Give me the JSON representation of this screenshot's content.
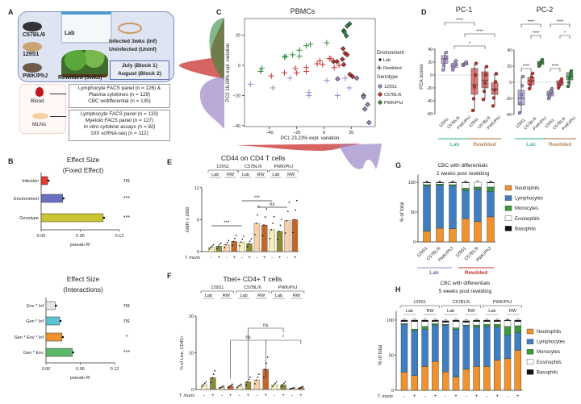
{
  "panel_letters": [
    "A",
    "B",
    "C",
    "D",
    "E",
    "F",
    "G",
    "H"
  ],
  "panelA": {
    "strains": [
      "C57BL/6",
      "129S1",
      "PWK/PhJ"
    ],
    "lab": "Lab",
    "rewilded": "Rewilded (5wks)",
    "infected": "Infected 3wks (Inf)",
    "uninfected": "Uninfected (Uninf)",
    "block1": "July (Block 1)",
    "block2": "August (Block 2)",
    "blood": "Blood",
    "mlns": "MLNs",
    "blood_assays": [
      "Lymphocyte FACS panel (n = 126) &",
      "Plasma cytokines (n = 129)",
      "CBC w/differential (n = 135)"
    ],
    "mln_assays": [
      "Lymphocyte FACS panel (n = 133)",
      "Myeloid FACS panel (n = 127)",
      "In vitro cytokine assays (n = 92)",
      "10X scRNA-seq (n = 112)"
    ]
  },
  "colors": {
    "129S1": "#9b86c6",
    "C57BL/6": "#c8302f",
    "PWK/PhJ": "#2e8b3e",
    "lab_green": "#4fc08d",
    "rewilded_tan": "#b88a5e",
    "neutro": "#f0922e",
    "lympho": "#3f7fc1",
    "mono": "#3a9a3a",
    "eos": "#ffffff",
    "baso": "#111111",
    "lab_nouninf": "#f4efb8",
    "lab_inf": "#8c8a35",
    "rw_uninf": "#f7cfa8",
    "rw_inf": "#c0682c"
  },
  "chart_data": [
    {
      "id": "B1",
      "type": "bar",
      "orientation": "horizontal",
      "title": "Effect Size",
      "subtitle": "(Fixed Effect)",
      "xlabel": "pseudo R²",
      "xlim": [
        0,
        0.12
      ],
      "xticks": [
        "0.00",
        "0.06",
        "0.12"
      ],
      "categories": [
        "Infection",
        "Environment",
        "Genotype"
      ],
      "values": [
        0.01,
        0.033,
        0.095
      ],
      "significance": [
        "ns",
        "***",
        "***"
      ],
      "bar_colors": [
        "#e03b2e",
        "#6a6fc0",
        "#c9c431"
      ]
    },
    {
      "id": "B2",
      "type": "bar",
      "orientation": "horizontal",
      "title": "Effect Size",
      "subtitle": "(Interactions)",
      "xlabel": "pseudo R²",
      "xlim": [
        0,
        0.12
      ],
      "xticks": [
        "0.00",
        "0.06",
        "0.12"
      ],
      "categories": [
        "Env * Inf",
        "Gen *  Inf",
        "Gen * Env * Inf",
        "Gen * Env"
      ],
      "values": [
        0.016,
        0.024,
        0.028,
        0.046
      ],
      "significance": [
        "ns",
        "ns",
        "*",
        "***"
      ],
      "bar_colors": [
        "#e8e8e2",
        "#5bc3d3",
        "#f0922e",
        "#5cb86a"
      ]
    },
    {
      "id": "C",
      "type": "scatter",
      "title": "PBMCs",
      "xlabel": "PC1 23.23% expl. variation",
      "ylabel": "PC2 16.08% expl. variation",
      "xlim": [
        -58,
        36
      ],
      "ylim": [
        -42,
        31
      ],
      "xticks": [
        -40,
        -20,
        0,
        20
      ],
      "yticks": [
        -40,
        -20,
        0,
        20
      ],
      "legend": {
        "env_title": "Environment",
        "env": [
          "Lab",
          "Rewilded"
        ],
        "geno_title": "Genotype",
        "geno": [
          "129S1",
          "C57BL/6",
          "PWK/PhJ"
        ],
        "placement": "right"
      },
      "points": [
        [
          18.8,
          27.5,
          "Lab",
          "PWK/PhJ"
        ],
        [
          17,
          26,
          "Lab",
          "PWK/PhJ"
        ],
        [
          14.5,
          23,
          "Lab",
          "PWK/PhJ"
        ],
        [
          16.4,
          19.6,
          "Lab",
          "PWK/PhJ"
        ],
        [
          15,
          22,
          "Lab",
          "PWK/PhJ"
        ],
        [
          -46.5,
          -4,
          "RW",
          "PWK/PhJ"
        ],
        [
          -45.5,
          -2,
          "RW",
          "PWK/PhJ"
        ],
        [
          -29,
          5.5,
          "RW",
          "PWK/PhJ"
        ],
        [
          -28,
          6,
          "RW",
          "PWK/PhJ"
        ],
        [
          -23,
          7,
          "RW",
          "PWK/PhJ"
        ],
        [
          -18,
          10,
          "RW",
          "PWK/PhJ"
        ],
        [
          -18,
          6,
          "RW",
          "PWK/PhJ"
        ],
        [
          -13,
          13,
          "RW",
          "PWK/PhJ"
        ],
        [
          -10,
          14,
          "RW",
          "PWK/PhJ"
        ],
        [
          2,
          15,
          "RW",
          "PWK/PhJ"
        ],
        [
          14,
          11,
          "Lab",
          "C57BL/6"
        ],
        [
          15.5,
          8,
          "Lab",
          "C57BL/6"
        ],
        [
          17,
          7,
          "Lab",
          "C57BL/6"
        ],
        [
          9.5,
          2.5,
          "Lab",
          "C57BL/6"
        ],
        [
          7,
          2.5,
          "Lab",
          "C57BL/6"
        ],
        [
          13.5,
          4,
          "Lab",
          "C57BL/6"
        ],
        [
          14.5,
          0.5,
          "Lab",
          "C57BL/6"
        ],
        [
          19,
          -6,
          "Lab",
          "C57BL/6"
        ],
        [
          21,
          -7.5,
          "Lab",
          "C57BL/6"
        ],
        [
          -38.6,
          -7,
          "RW",
          "C57BL/6"
        ],
        [
          -29,
          -5,
          "RW",
          "C57BL/6"
        ],
        [
          -21,
          -2,
          "RW",
          "C57BL/6"
        ],
        [
          -20,
          -5,
          "RW",
          "C57BL/6"
        ],
        [
          -13,
          -1.5,
          "RW",
          "C57BL/6"
        ],
        [
          -13,
          -4,
          "RW",
          "C57BL/6"
        ],
        [
          -5,
          1,
          "RW",
          "C57BL/6"
        ],
        [
          -3,
          3,
          "RW",
          "C57BL/6"
        ],
        [
          -1,
          0.5,
          "RW",
          "C57BL/6"
        ],
        [
          5,
          4.5,
          "RW",
          "C57BL/6"
        ],
        [
          7.5,
          -1.5,
          "RW",
          "C57BL/6"
        ],
        [
          11,
          0,
          "RW",
          "C57BL/6"
        ],
        [
          4,
          4.5,
          "RW",
          "C57BL/6"
        ],
        [
          10,
          -9,
          "Lab",
          "129S1"
        ],
        [
          24,
          -8.5,
          "Lab",
          "129S1"
        ],
        [
          29,
          -20,
          "Lab",
          "129S1"
        ],
        [
          29,
          -21,
          "Lab",
          "129S1"
        ],
        [
          30,
          -29,
          "Lab",
          "129S1"
        ],
        [
          32,
          -26,
          "Lab",
          "129S1"
        ],
        [
          33,
          -38,
          "Lab",
          "129S1"
        ],
        [
          -54,
          -12.5,
          "RW",
          "129S1"
        ],
        [
          -37.5,
          -15,
          "RW",
          "129S1"
        ],
        [
          -25,
          -8.5,
          "RW",
          "129S1"
        ],
        [
          -11,
          -18,
          "RW",
          "129S1"
        ],
        [
          -11,
          -20,
          "RW",
          "129S1"
        ],
        [
          2,
          -10,
          "RW",
          "129S1"
        ],
        [
          10,
          -20,
          "RW",
          "129S1"
        ],
        [
          15.5,
          -8.5,
          "RW",
          "129S1"
        ],
        [
          18.6,
          -15,
          "RW",
          "129S1"
        ]
      ]
    },
    {
      "id": "D1",
      "type": "box",
      "title": "PC-1",
      "ylabel": "PCA scores",
      "ylim": [
        -60,
        40
      ],
      "yticks": [
        -60,
        -40,
        -20,
        0,
        20,
        40
      ],
      "categories": [
        "129S1",
        "C57BL/6",
        "PWK/PhJ",
        "129S1",
        "C57BL/6",
        "PWK/PhJ"
      ],
      "groups": [
        "Lab",
        "Rewilded"
      ],
      "boxes": [
        [
          8,
          18,
          25,
          30,
          35
        ],
        [
          8,
          12,
          15,
          18,
          22
        ],
        [
          15,
          16,
          17,
          18,
          20
        ],
        [
          -55,
          -30,
          -15,
          10,
          18
        ],
        [
          -38,
          -20,
          -8,
          5,
          13
        ],
        [
          -48,
          -30,
          -22,
          -12,
          2
        ]
      ],
      "brackets": [
        [
          0,
          3,
          "****"
        ],
        [
          2,
          5,
          "****"
        ],
        [
          1,
          4,
          "*"
        ]
      ]
    },
    {
      "id": "D2",
      "type": "box",
      "title": "PC-2",
      "ylim": [
        -40,
        40
      ],
      "yticks": [
        -40,
        -20,
        0,
        20,
        40
      ],
      "categories": [
        "129S1",
        "C57BL/6",
        "PWK/PhJ",
        "129S1",
        "C57BL/6",
        "PWK/PhJ"
      ],
      "groups": [
        "Lab",
        "Rewilded"
      ],
      "boxes": [
        [
          -38,
          -28,
          -20,
          -10,
          7
        ],
        [
          -8,
          -3,
          2,
          6,
          11
        ],
        [
          20,
          22,
          24,
          26,
          28
        ],
        [
          -20,
          -17,
          -14,
          -11,
          -8
        ],
        [
          -7,
          -4,
          -1,
          2,
          4
        ],
        [
          -5,
          3,
          7,
          12,
          14
        ]
      ],
      "brackets": [
        [
          0,
          2,
          "****"
        ],
        [
          1,
          2,
          "****"
        ],
        [
          0,
          1,
          "****"
        ],
        [
          3,
          5,
          "****"
        ],
        [
          4,
          5,
          "*"
        ],
        [
          3,
          4,
          "****"
        ]
      ]
    },
    {
      "id": "E",
      "type": "bar",
      "title": "CD44 on CD4 T cells",
      "ylabel": "GMFI x 1000",
      "ylim": [
        0,
        12
      ],
      "yticks": [
        0,
        6,
        12
      ],
      "genotypes": [
        "129S1",
        "C57BL/6",
        "PWK/PhJ"
      ],
      "environments": [
        "Lab",
        "RW"
      ],
      "xrow_label": "T. muris",
      "infection": [
        "-",
        "+",
        "-",
        "+",
        "-",
        "+",
        "-",
        "+",
        "-",
        "+",
        "-",
        "+"
      ],
      "values": [
        0.8,
        1.0,
        1.3,
        1.9,
        1.8,
        1.5,
        5.3,
        5.0,
        4.1,
        3.8,
        5.8,
        6.0
      ],
      "brackets": [
        [
          0,
          4,
          "***"
        ],
        [
          4,
          8,
          "***"
        ],
        [
          6,
          10,
          "ns"
        ]
      ]
    },
    {
      "id": "F",
      "type": "bar",
      "title": "Tbet+  CD4+ T cells",
      "ylabel": "% of Live, CD45+",
      "ylim": [
        0,
        20
      ],
      "yticks": [
        0,
        10,
        20
      ],
      "genotypes": [
        "129S1",
        "C57BL/6",
        "PWK/PhJ"
      ],
      "environments": [
        "Lab",
        "RW"
      ],
      "xrow_label": "T. muris",
      "infection": [
        "-",
        "+",
        "-",
        "+",
        "-",
        "+",
        "-",
        "+",
        "-",
        "+",
        "-",
        "+"
      ],
      "values": [
        1.3,
        3.2,
        0.6,
        0.9,
        0.9,
        2.1,
        2.6,
        5.5,
        1.3,
        1.3,
        0.3,
        0.5
      ],
      "brackets": [
        [
          3,
          7,
          "ns"
        ],
        [
          7,
          11,
          "*"
        ],
        [
          5,
          9,
          "ns"
        ]
      ]
    },
    {
      "id": "G",
      "type": "stacked_bar",
      "title": "CBC with differentials",
      "subtitle": "2 weeks post rewilding",
      "ylabel": "% of total",
      "ylim": [
        0,
        100
      ],
      "yticks": [
        0,
        50,
        100
      ],
      "categories": [
        "129S1",
        "C57BL/6",
        "PWK/PhJ",
        "129S1",
        "C57BL/6",
        "PWK/PhJ"
      ],
      "groups": [
        "Lab",
        "Rewilded"
      ],
      "series": [
        {
          "name": "Neutrophils",
          "values": [
            18,
            23,
            22,
            39,
            34,
            42
          ]
        },
        {
          "name": "Lymphocytes",
          "values": [
            76,
            72,
            72,
            47,
            54,
            43
          ]
        },
        {
          "name": "Monocytes",
          "values": [
            2,
            2,
            2,
            4,
            4,
            7
          ]
        },
        {
          "name": "Eosinophils",
          "values": [
            3,
            2,
            3,
            9,
            8,
            7
          ]
        },
        {
          "name": "Basophils",
          "values": [
            1,
            1,
            1,
            1,
            0,
            1
          ]
        }
      ]
    },
    {
      "id": "H",
      "type": "stacked_bar",
      "title": "CBC with differentials",
      "subtitle": "5 weeks post rewilding",
      "ylabel": "% of total",
      "ylim": [
        0,
        100
      ],
      "yticks": [
        0,
        50,
        100
      ],
      "genotypes": [
        "129S1",
        "C57BL/6",
        "PWK/PhJ"
      ],
      "environments": [
        "Lab",
        "RW"
      ],
      "xrow_label": "T. muris",
      "infection": [
        "-",
        "+",
        "-",
        "+",
        "-",
        "+",
        "-",
        "+",
        "-",
        "+",
        "-",
        "+"
      ],
      "series": [
        {
          "name": "Neutrophils",
          "values": [
            26,
            21,
            34,
            41,
            26,
            19,
            30,
            34,
            34,
            43,
            45,
            57
          ]
        },
        {
          "name": "Lymphocytes",
          "values": [
            68,
            64,
            53,
            52,
            67,
            68,
            62,
            56,
            57,
            47,
            34,
            25
          ]
        },
        {
          "name": "Monocytes",
          "values": [
            1,
            2,
            4,
            2,
            1,
            2,
            1,
            3,
            3,
            4,
            12,
            10
          ]
        },
        {
          "name": "Eosinophils",
          "values": [
            3,
            11,
            7,
            3,
            3,
            9,
            4,
            5,
            4,
            4,
            8,
            6
          ]
        },
        {
          "name": "Basophils",
          "values": [
            2,
            2,
            2,
            2,
            2,
            2,
            2,
            2,
            2,
            2,
            1,
            2
          ]
        }
      ]
    }
  ]
}
